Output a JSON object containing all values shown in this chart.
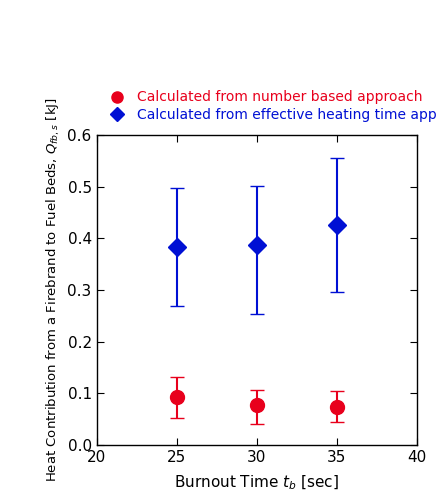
{
  "x": [
    25,
    30,
    35
  ],
  "red_y": [
    0.093,
    0.078,
    0.074
  ],
  "red_yerr_upper": [
    0.038,
    0.028,
    0.03
  ],
  "red_yerr_lower": [
    0.04,
    0.038,
    0.03
  ],
  "blue_y": [
    0.383,
    0.388,
    0.425
  ],
  "blue_yerr_upper": [
    0.115,
    0.113,
    0.13
  ],
  "blue_yerr_lower": [
    0.113,
    0.135,
    0.128
  ],
  "xlim": [
    20,
    40
  ],
  "ylim": [
    0,
    0.6
  ],
  "yticks": [
    0,
    0.1,
    0.2,
    0.3,
    0.4,
    0.5,
    0.6
  ],
  "xticks": [
    20,
    25,
    30,
    35,
    40
  ],
  "legend1_label": "Calculated from number based approach",
  "legend2_label": "Calculated from effective heating time approach",
  "red_color": "#e8001c",
  "blue_color": "#0010d4",
  "marker_size_red": 10,
  "marker_size_blue": 9,
  "capsize": 5,
  "linewidth": 1.5,
  "tick_fontsize": 11,
  "label_fontsize": 11,
  "legend_fontsize": 10
}
